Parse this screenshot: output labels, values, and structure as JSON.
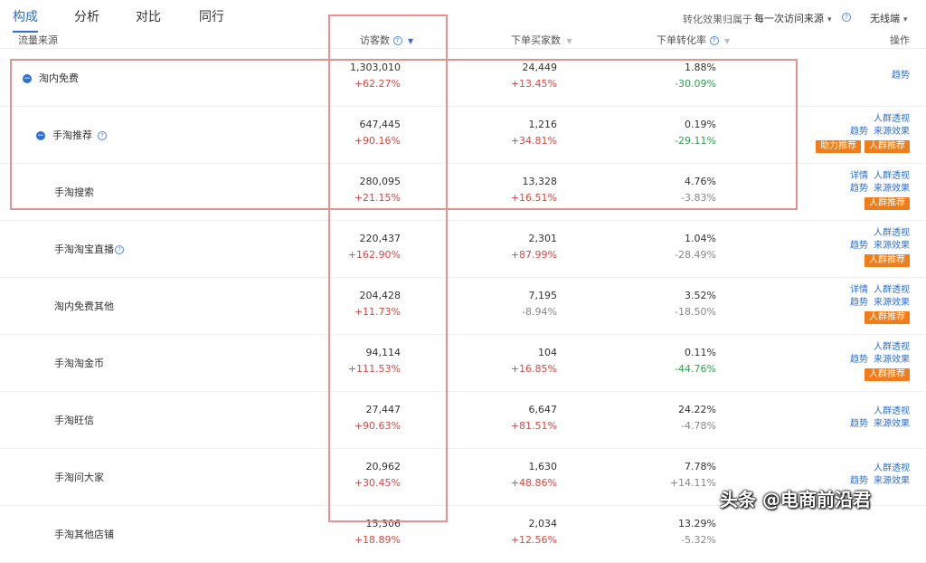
{
  "tabs": [
    {
      "label": "构成",
      "active": true
    },
    {
      "label": "分析",
      "active": false
    },
    {
      "label": "对比",
      "active": false
    },
    {
      "label": "同行",
      "active": false
    }
  ],
  "controls": {
    "attribution_label": "转化效果归属于",
    "attribution_value": "每一次访问来源",
    "device_value": "无线端"
  },
  "headers": {
    "source": "流量来源",
    "visitors": "访客数",
    "buyers": "下单买家数",
    "conversion": "下单转化率",
    "ops": "操作"
  },
  "rows": [
    {
      "source": "淘内免费",
      "expand": "−",
      "visitors": "1,303,010",
      "visitors_chg": "+62.27%",
      "buyers": "24,449",
      "buyers_chg": "+13.45%",
      "conv": "1.88%",
      "conv_chg": "-30.09%",
      "ops": {
        "line1": [],
        "line2": [
          "趋势"
        ],
        "buttons": []
      }
    },
    {
      "source": "手淘推荐",
      "expand": "−",
      "help": true,
      "visitors": "647,445",
      "visitors_chg": "+90.16%",
      "buyers": "1,216",
      "buyers_chg": "+34.81%",
      "conv": "0.19%",
      "conv_chg": "-29.11%",
      "ops": {
        "line1": [
          "人群透视"
        ],
        "line2": [
          "趋势",
          "来源效果"
        ],
        "buttons": [
          "助力推荐",
          "人群推荐"
        ]
      }
    },
    {
      "source": "手淘搜索",
      "visitors": "280,095",
      "visitors_chg": "+21.15%",
      "buyers": "13,328",
      "buyers_chg": "+16.51%",
      "conv": "4.76%",
      "conv_chg": "-3.83%",
      "ops": {
        "line1": [
          "详情",
          "人群透视"
        ],
        "line2": [
          "趋势",
          "来源效果"
        ],
        "buttons": [
          "人群推荐"
        ]
      }
    },
    {
      "source": "手淘淘宝直播",
      "help_inline": true,
      "visitors": "220,437",
      "visitors_chg": "+162.90%",
      "buyers": "2,301",
      "buyers_chg": "+87.99%",
      "conv": "1.04%",
      "conv_chg": "-28.49%",
      "ops": {
        "line1": [
          "人群透视"
        ],
        "line2": [
          "趋势",
          "来源效果"
        ],
        "buttons": [
          "人群推荐"
        ]
      }
    },
    {
      "source": "淘内免费其他",
      "visitors": "204,428",
      "visitors_chg": "+11.73%",
      "buyers": "7,195",
      "buyers_chg": "-8.94%",
      "conv": "3.52%",
      "conv_chg": "-18.50%",
      "ops": {
        "line1": [
          "详情",
          "人群透视"
        ],
        "line2": [
          "趋势",
          "来源效果"
        ],
        "buttons": [
          "人群推荐"
        ]
      }
    },
    {
      "source": "手淘淘金币",
      "visitors": "94,114",
      "visitors_chg": "+111.53%",
      "buyers": "104",
      "buyers_chg": "+16.85%",
      "conv": "0.11%",
      "conv_chg": "-44.76%",
      "ops": {
        "line1": [
          "人群透视"
        ],
        "line2": [
          "趋势",
          "来源效果"
        ],
        "buttons": [
          "人群推荐"
        ]
      }
    },
    {
      "source": "手淘旺信",
      "visitors": "27,447",
      "visitors_chg": "+90.63%",
      "buyers": "6,647",
      "buyers_chg": "+81.51%",
      "conv": "24.22%",
      "conv_chg": "-4.78%",
      "ops": {
        "line1": [
          "人群透视"
        ],
        "line2": [
          "趋势",
          "来源效果"
        ],
        "buttons": []
      }
    },
    {
      "source": "手淘问大家",
      "visitors": "20,962",
      "visitors_chg": "+30.45%",
      "buyers": "1,630",
      "buyers_chg": "+48.86%",
      "conv": "7.78%",
      "conv_chg": "+14.11%",
      "ops": {
        "line1": [
          "人群透视"
        ],
        "line2": [
          "趋势",
          "来源效果"
        ],
        "buttons": []
      }
    },
    {
      "source": "手淘其他店铺",
      "visitors": "15,306",
      "visitors_chg": "+18.89%",
      "buyers": "2,034",
      "buyers_chg": "+12.56%",
      "conv": "13.29%",
      "conv_chg": "-5.32%",
      "ops": {
        "line1": [],
        "line2": [],
        "buttons": []
      }
    }
  ],
  "watermark": "头条 @电商前沿君",
  "colors": {
    "accent": "#2f6fd6",
    "increase": "#e0453f",
    "decrease": "#2aa34a",
    "button": "#f07d1a",
    "highlight_box": "#e98f8f"
  }
}
